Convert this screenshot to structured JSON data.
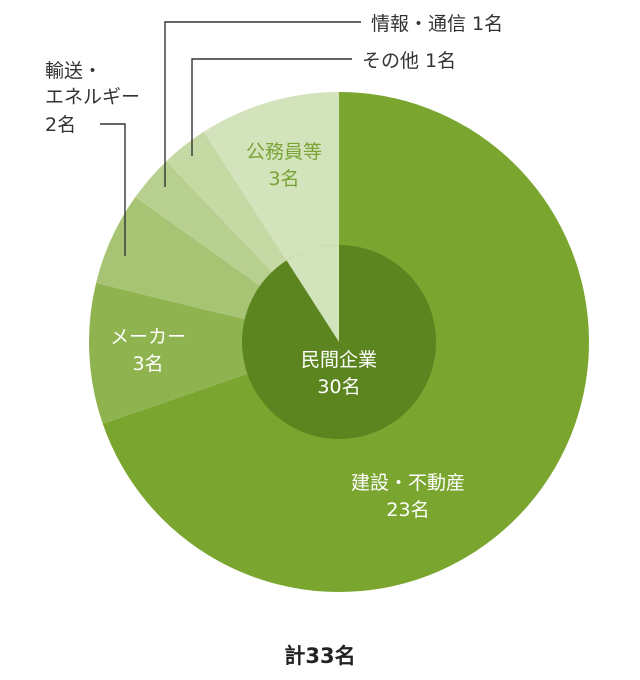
{
  "chart_data": {
    "type": "pie",
    "inner": {
      "label": "民間企業",
      "value_label": "30名",
      "value": 30,
      "color": "#5c8520"
    },
    "slices": [
      {
        "key": "construction",
        "label": "建設・不動産",
        "value_label": "23名",
        "value": 23,
        "color": "#7aa630"
      },
      {
        "key": "maker",
        "label": "メーカー",
        "value_label": "3名",
        "value": 3,
        "color": "#8fb34f"
      },
      {
        "key": "transport",
        "label_lines": [
          "輸送・",
          "エネルギー",
          "2名"
        ],
        "value": 2,
        "color": "#a6c474"
      },
      {
        "key": "info",
        "label": "情報・通信 1名",
        "value": 1,
        "color": "#b8d08f"
      },
      {
        "key": "other",
        "label": "その他 1名",
        "value": 1,
        "color": "#c5d9a5"
      },
      {
        "key": "public",
        "label": "公務員等",
        "value_label": "3名",
        "value": 3,
        "color": "#d3e3bb"
      }
    ],
    "total_label": "計33名"
  }
}
